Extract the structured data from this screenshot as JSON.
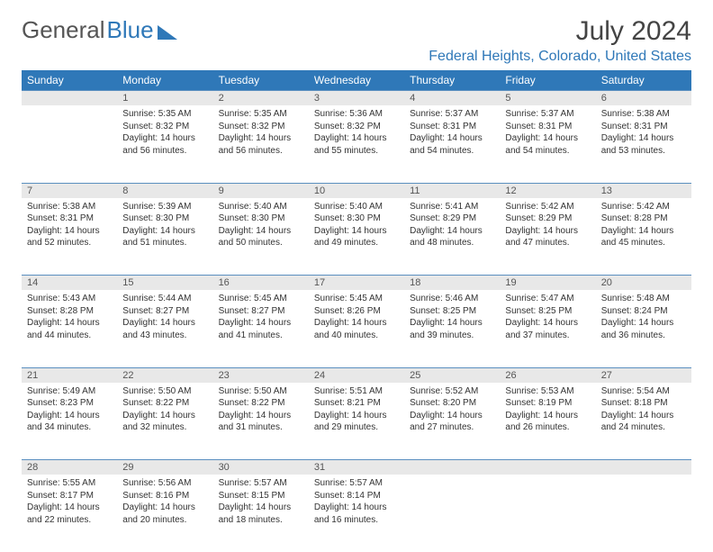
{
  "logo": {
    "text1": "General",
    "text2": "Blue"
  },
  "title": "July 2024",
  "location": "Federal Heights, Colorado, United States",
  "colors": {
    "header_bg": "#2f78b8",
    "header_text": "#ffffff",
    "daynum_bg": "#e8e8e8",
    "rule": "#5a8fbf",
    "body_text": "#333333"
  },
  "day_headers": [
    "Sunday",
    "Monday",
    "Tuesday",
    "Wednesday",
    "Thursday",
    "Friday",
    "Saturday"
  ],
  "weeks": [
    {
      "nums": [
        "",
        "1",
        "2",
        "3",
        "4",
        "5",
        "6"
      ],
      "cells": [
        "",
        "Sunrise: 5:35 AM\nSunset: 8:32 PM\nDaylight: 14 hours and 56 minutes.",
        "Sunrise: 5:35 AM\nSunset: 8:32 PM\nDaylight: 14 hours and 56 minutes.",
        "Sunrise: 5:36 AM\nSunset: 8:32 PM\nDaylight: 14 hours and 55 minutes.",
        "Sunrise: 5:37 AM\nSunset: 8:31 PM\nDaylight: 14 hours and 54 minutes.",
        "Sunrise: 5:37 AM\nSunset: 8:31 PM\nDaylight: 14 hours and 54 minutes.",
        "Sunrise: 5:38 AM\nSunset: 8:31 PM\nDaylight: 14 hours and 53 minutes."
      ]
    },
    {
      "nums": [
        "7",
        "8",
        "9",
        "10",
        "11",
        "12",
        "13"
      ],
      "cells": [
        "Sunrise: 5:38 AM\nSunset: 8:31 PM\nDaylight: 14 hours and 52 minutes.",
        "Sunrise: 5:39 AM\nSunset: 8:30 PM\nDaylight: 14 hours and 51 minutes.",
        "Sunrise: 5:40 AM\nSunset: 8:30 PM\nDaylight: 14 hours and 50 minutes.",
        "Sunrise: 5:40 AM\nSunset: 8:30 PM\nDaylight: 14 hours and 49 minutes.",
        "Sunrise: 5:41 AM\nSunset: 8:29 PM\nDaylight: 14 hours and 48 minutes.",
        "Sunrise: 5:42 AM\nSunset: 8:29 PM\nDaylight: 14 hours and 47 minutes.",
        "Sunrise: 5:42 AM\nSunset: 8:28 PM\nDaylight: 14 hours and 45 minutes."
      ]
    },
    {
      "nums": [
        "14",
        "15",
        "16",
        "17",
        "18",
        "19",
        "20"
      ],
      "cells": [
        "Sunrise: 5:43 AM\nSunset: 8:28 PM\nDaylight: 14 hours and 44 minutes.",
        "Sunrise: 5:44 AM\nSunset: 8:27 PM\nDaylight: 14 hours and 43 minutes.",
        "Sunrise: 5:45 AM\nSunset: 8:27 PM\nDaylight: 14 hours and 41 minutes.",
        "Sunrise: 5:45 AM\nSunset: 8:26 PM\nDaylight: 14 hours and 40 minutes.",
        "Sunrise: 5:46 AM\nSunset: 8:25 PM\nDaylight: 14 hours and 39 minutes.",
        "Sunrise: 5:47 AM\nSunset: 8:25 PM\nDaylight: 14 hours and 37 minutes.",
        "Sunrise: 5:48 AM\nSunset: 8:24 PM\nDaylight: 14 hours and 36 minutes."
      ]
    },
    {
      "nums": [
        "21",
        "22",
        "23",
        "24",
        "25",
        "26",
        "27"
      ],
      "cells": [
        "Sunrise: 5:49 AM\nSunset: 8:23 PM\nDaylight: 14 hours and 34 minutes.",
        "Sunrise: 5:50 AM\nSunset: 8:22 PM\nDaylight: 14 hours and 32 minutes.",
        "Sunrise: 5:50 AM\nSunset: 8:22 PM\nDaylight: 14 hours and 31 minutes.",
        "Sunrise: 5:51 AM\nSunset: 8:21 PM\nDaylight: 14 hours and 29 minutes.",
        "Sunrise: 5:52 AM\nSunset: 8:20 PM\nDaylight: 14 hours and 27 minutes.",
        "Sunrise: 5:53 AM\nSunset: 8:19 PM\nDaylight: 14 hours and 26 minutes.",
        "Sunrise: 5:54 AM\nSunset: 8:18 PM\nDaylight: 14 hours and 24 minutes."
      ]
    },
    {
      "nums": [
        "28",
        "29",
        "30",
        "31",
        "",
        "",
        ""
      ],
      "cells": [
        "Sunrise: 5:55 AM\nSunset: 8:17 PM\nDaylight: 14 hours and 22 minutes.",
        "Sunrise: 5:56 AM\nSunset: 8:16 PM\nDaylight: 14 hours and 20 minutes.",
        "Sunrise: 5:57 AM\nSunset: 8:15 PM\nDaylight: 14 hours and 18 minutes.",
        "Sunrise: 5:57 AM\nSunset: 8:14 PM\nDaylight: 14 hours and 16 minutes.",
        "",
        "",
        ""
      ]
    }
  ]
}
